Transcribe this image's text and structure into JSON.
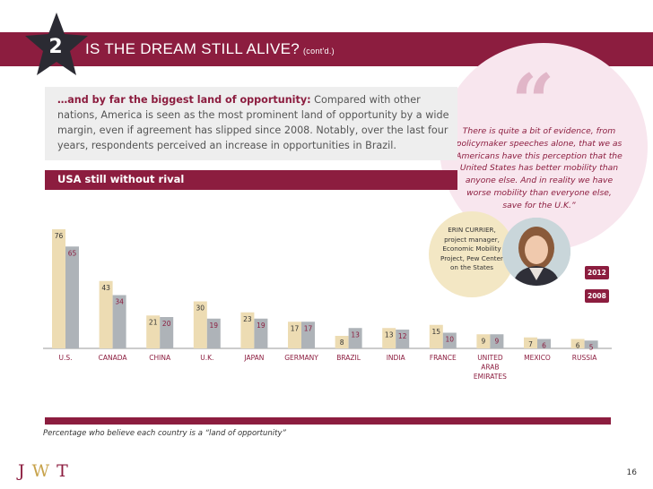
{
  "header": {
    "section_number": "2",
    "title": "IS THE DREAM STILL ALIVE?",
    "title_suffix": "(cont'd.)"
  },
  "intro": {
    "lead": "…and by far the biggest land of opportunity:",
    "body": "Compared with other nations, America is seen as the most prominent land of opportunity by a wide margin, even if agreement has slipped since 2008. Notably, over the last four years, respondents perceived an increase in opportunities in Brazil."
  },
  "subheading": "USA still without rival",
  "quote": {
    "mark": "“",
    "text": "There is quite a bit of evidence, from policymaker speeches alone, that we as Americans have this perception that the United States has better mobility than anyone else. And in reality we have worse mobility than everyone else, save for the U.K.”"
  },
  "attribution": {
    "name": "ERIN CURRIER,",
    "role": "project manager, Economic Mobility Project, Pew Center on the States"
  },
  "colors": {
    "brand": "#8c1d3f",
    "series_2008": "#eddcb3",
    "series_2012": "#aeb3b8",
    "quote_bg": "#f8e6ee"
  },
  "chart_data": {
    "type": "bar",
    "title": "USA still without rival",
    "categories": [
      "U.S.",
      "CANADA",
      "CHINA",
      "U.K.",
      "JAPAN",
      "GERMANY",
      "BRAZIL",
      "INDIA",
      "FRANCE",
      "UNITED ARAB EMIRATES",
      "MEXICO",
      "RUSSIA"
    ],
    "series": [
      {
        "name": "2008",
        "values": [
          76,
          43,
          21,
          30,
          23,
          17,
          8,
          13,
          15,
          9,
          7,
          6
        ]
      },
      {
        "name": "2012",
        "values": [
          65,
          34,
          20,
          19,
          19,
          17,
          13,
          12,
          10,
          9,
          6,
          5
        ]
      }
    ],
    "ylim": [
      0,
      80
    ],
    "xlabel": "",
    "ylabel": "Percentage who believe each country is a “land of opportunity”",
    "legend": [
      "2012",
      "2008"
    ]
  },
  "caption": "Percentage who believe each country is a “land of opportunity”",
  "footer": {
    "logo_j": "J",
    "logo_w": "W",
    "logo_t": "T",
    "page_number": "16"
  }
}
